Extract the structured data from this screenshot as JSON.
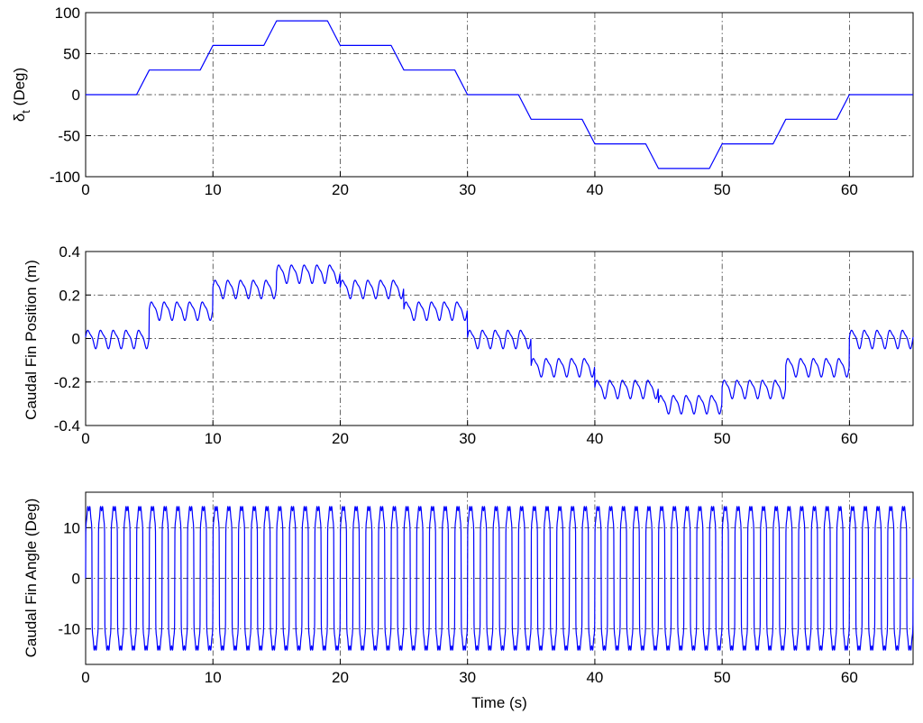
{
  "colors": {
    "series": "#0000ff",
    "axes": "#000000",
    "background": "#ffffff"
  },
  "chart_data": [
    {
      "type": "line",
      "xlabel": "",
      "ylabel": "δt (Deg)",
      "ylabel_main": "δ",
      "ylabel_sub": "t",
      "ylabel_rest": " (Deg)",
      "xlim": [
        0,
        65
      ],
      "ylim": [
        -100,
        100
      ],
      "xticks": [
        0,
        10,
        20,
        30,
        40,
        50,
        60
      ],
      "yticks": [
        -100,
        -50,
        0,
        50,
        100
      ],
      "grid": true,
      "series": [
        {
          "x": [
            0,
            4,
            5,
            9,
            10,
            14,
            15,
            19,
            20,
            24,
            25,
            29,
            30,
            34,
            35,
            39,
            40,
            44,
            45,
            49,
            50,
            54,
            55,
            59,
            60,
            65
          ],
          "y": [
            0,
            0,
            30,
            30,
            60,
            60,
            90,
            90,
            60,
            60,
            30,
            30,
            0,
            0,
            -30,
            -30,
            -60,
            -60,
            -90,
            -90,
            -60,
            -60,
            -30,
            -30,
            0,
            0
          ]
        }
      ]
    },
    {
      "type": "line",
      "xlabel": "",
      "ylabel": "Caudal Fin Position (m)",
      "xlim": [
        0,
        65
      ],
      "ylim": [
        -0.4,
        0.4
      ],
      "xticks": [
        0,
        10,
        20,
        30,
        40,
        50,
        60
      ],
      "yticks": [
        -0.4,
        -0.2,
        0,
        0.2,
        0.4
      ],
      "grid": true,
      "oscillation": {
        "amplitude": 0.045,
        "period_s": 1.0
      },
      "series": [
        {
          "segments": [
            {
              "t0": 0,
              "t1": 5,
              "center": 0
            },
            {
              "t0": 5,
              "t1": 10,
              "center": 0.13
            },
            {
              "t0": 10,
              "t1": 15,
              "center": 0.23
            },
            {
              "t0": 15,
              "t1": 20,
              "center": 0.3
            },
            {
              "t0": 20,
              "t1": 25,
              "center": 0.23
            },
            {
              "t0": 25,
              "t1": 30,
              "center": 0.13
            },
            {
              "t0": 30,
              "t1": 35,
              "center": 0
            },
            {
              "t0": 35,
              "t1": 40,
              "center": -0.13
            },
            {
              "t0": 40,
              "t1": 45,
              "center": -0.23
            },
            {
              "t0": 45,
              "t1": 50,
              "center": -0.3
            },
            {
              "t0": 50,
              "t1": 55,
              "center": -0.23
            },
            {
              "t0": 55,
              "t1": 60,
              "center": -0.13
            },
            {
              "t0": 60,
              "t1": 65,
              "center": 0
            }
          ]
        }
      ]
    },
    {
      "type": "line",
      "xlabel": "Time (s)",
      "ylabel": "Caudal Fin Angle (Deg)",
      "xlim": [
        0,
        65
      ],
      "ylim": [
        -17,
        17
      ],
      "xticks": [
        0,
        10,
        20,
        30,
        40,
        50,
        60
      ],
      "yticks": [
        -10,
        0,
        10
      ],
      "grid": true,
      "series": [
        {
          "amplitude": 14.5,
          "period_s": 1.0,
          "waveform": "square-like oscillation"
        }
      ]
    }
  ]
}
